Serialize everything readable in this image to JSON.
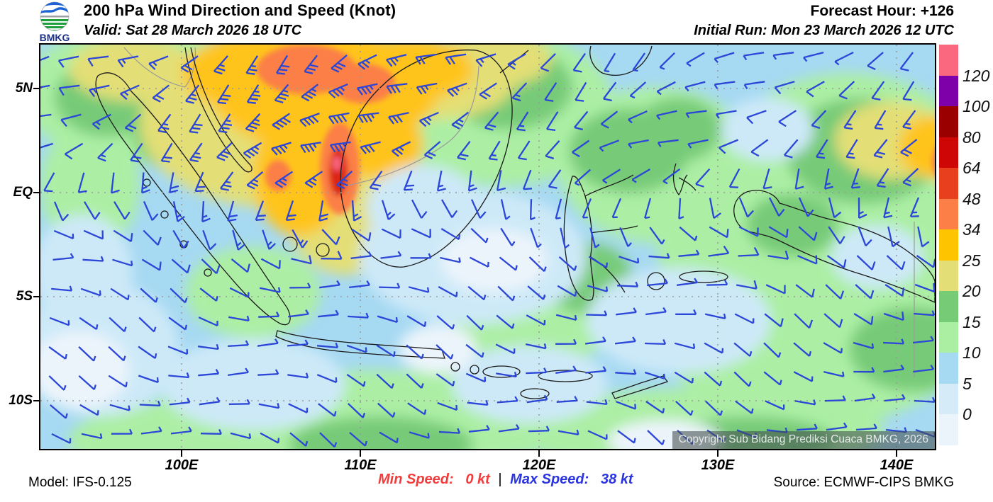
{
  "header": {
    "logo_text": "BMKG",
    "title": "200 hPa Wind Direction and Speed (Knot)",
    "valid": "Valid: Sat 28 March 2026 18 UTC",
    "forecast_hour": "Forecast Hour: +126",
    "initial_run": "Initial Run: Mon 23 March 2026 12 UTC"
  },
  "map": {
    "copyright": "Copyright Sub Bidang Prediksi Cuaca BMKG, 2026",
    "lat_labels": [
      "5N",
      "EQ",
      "5S",
      "10S"
    ],
    "lon_labels": [
      "100E",
      "110E",
      "120E",
      "130E",
      "140E"
    ]
  },
  "colorbar": {
    "labels_top_to_bottom": [
      "120",
      "100",
      "80",
      "64",
      "48",
      "34",
      "25",
      "20",
      "15",
      "10",
      "5",
      "0"
    ],
    "colors_top_to_bottom": [
      "#FA6880",
      "#7D00A8",
      "#9B0000",
      "#CF0606",
      "#E8401F",
      "#FB7F47",
      "#FFC400",
      "#E3DF76",
      "#76CB76",
      "#ABF0A2",
      "#A6D9F2",
      "#D5ECF8",
      "#ECF4FB"
    ]
  },
  "footer": {
    "model": "Model: IFS-0.125",
    "min_speed_label": "Min Speed:",
    "min_speed_value": "0 kt",
    "separator": "|",
    "max_speed_label": "Max Speed:",
    "max_speed_value": "38 kt",
    "source": "Source: ECMWF-CIPS BMKG"
  },
  "colors": {
    "min_speed_text": "#f23b3b",
    "max_speed_text": "#2a35e0",
    "wind_barb": "#2c46d8",
    "coastline": "#1b1b1b"
  }
}
